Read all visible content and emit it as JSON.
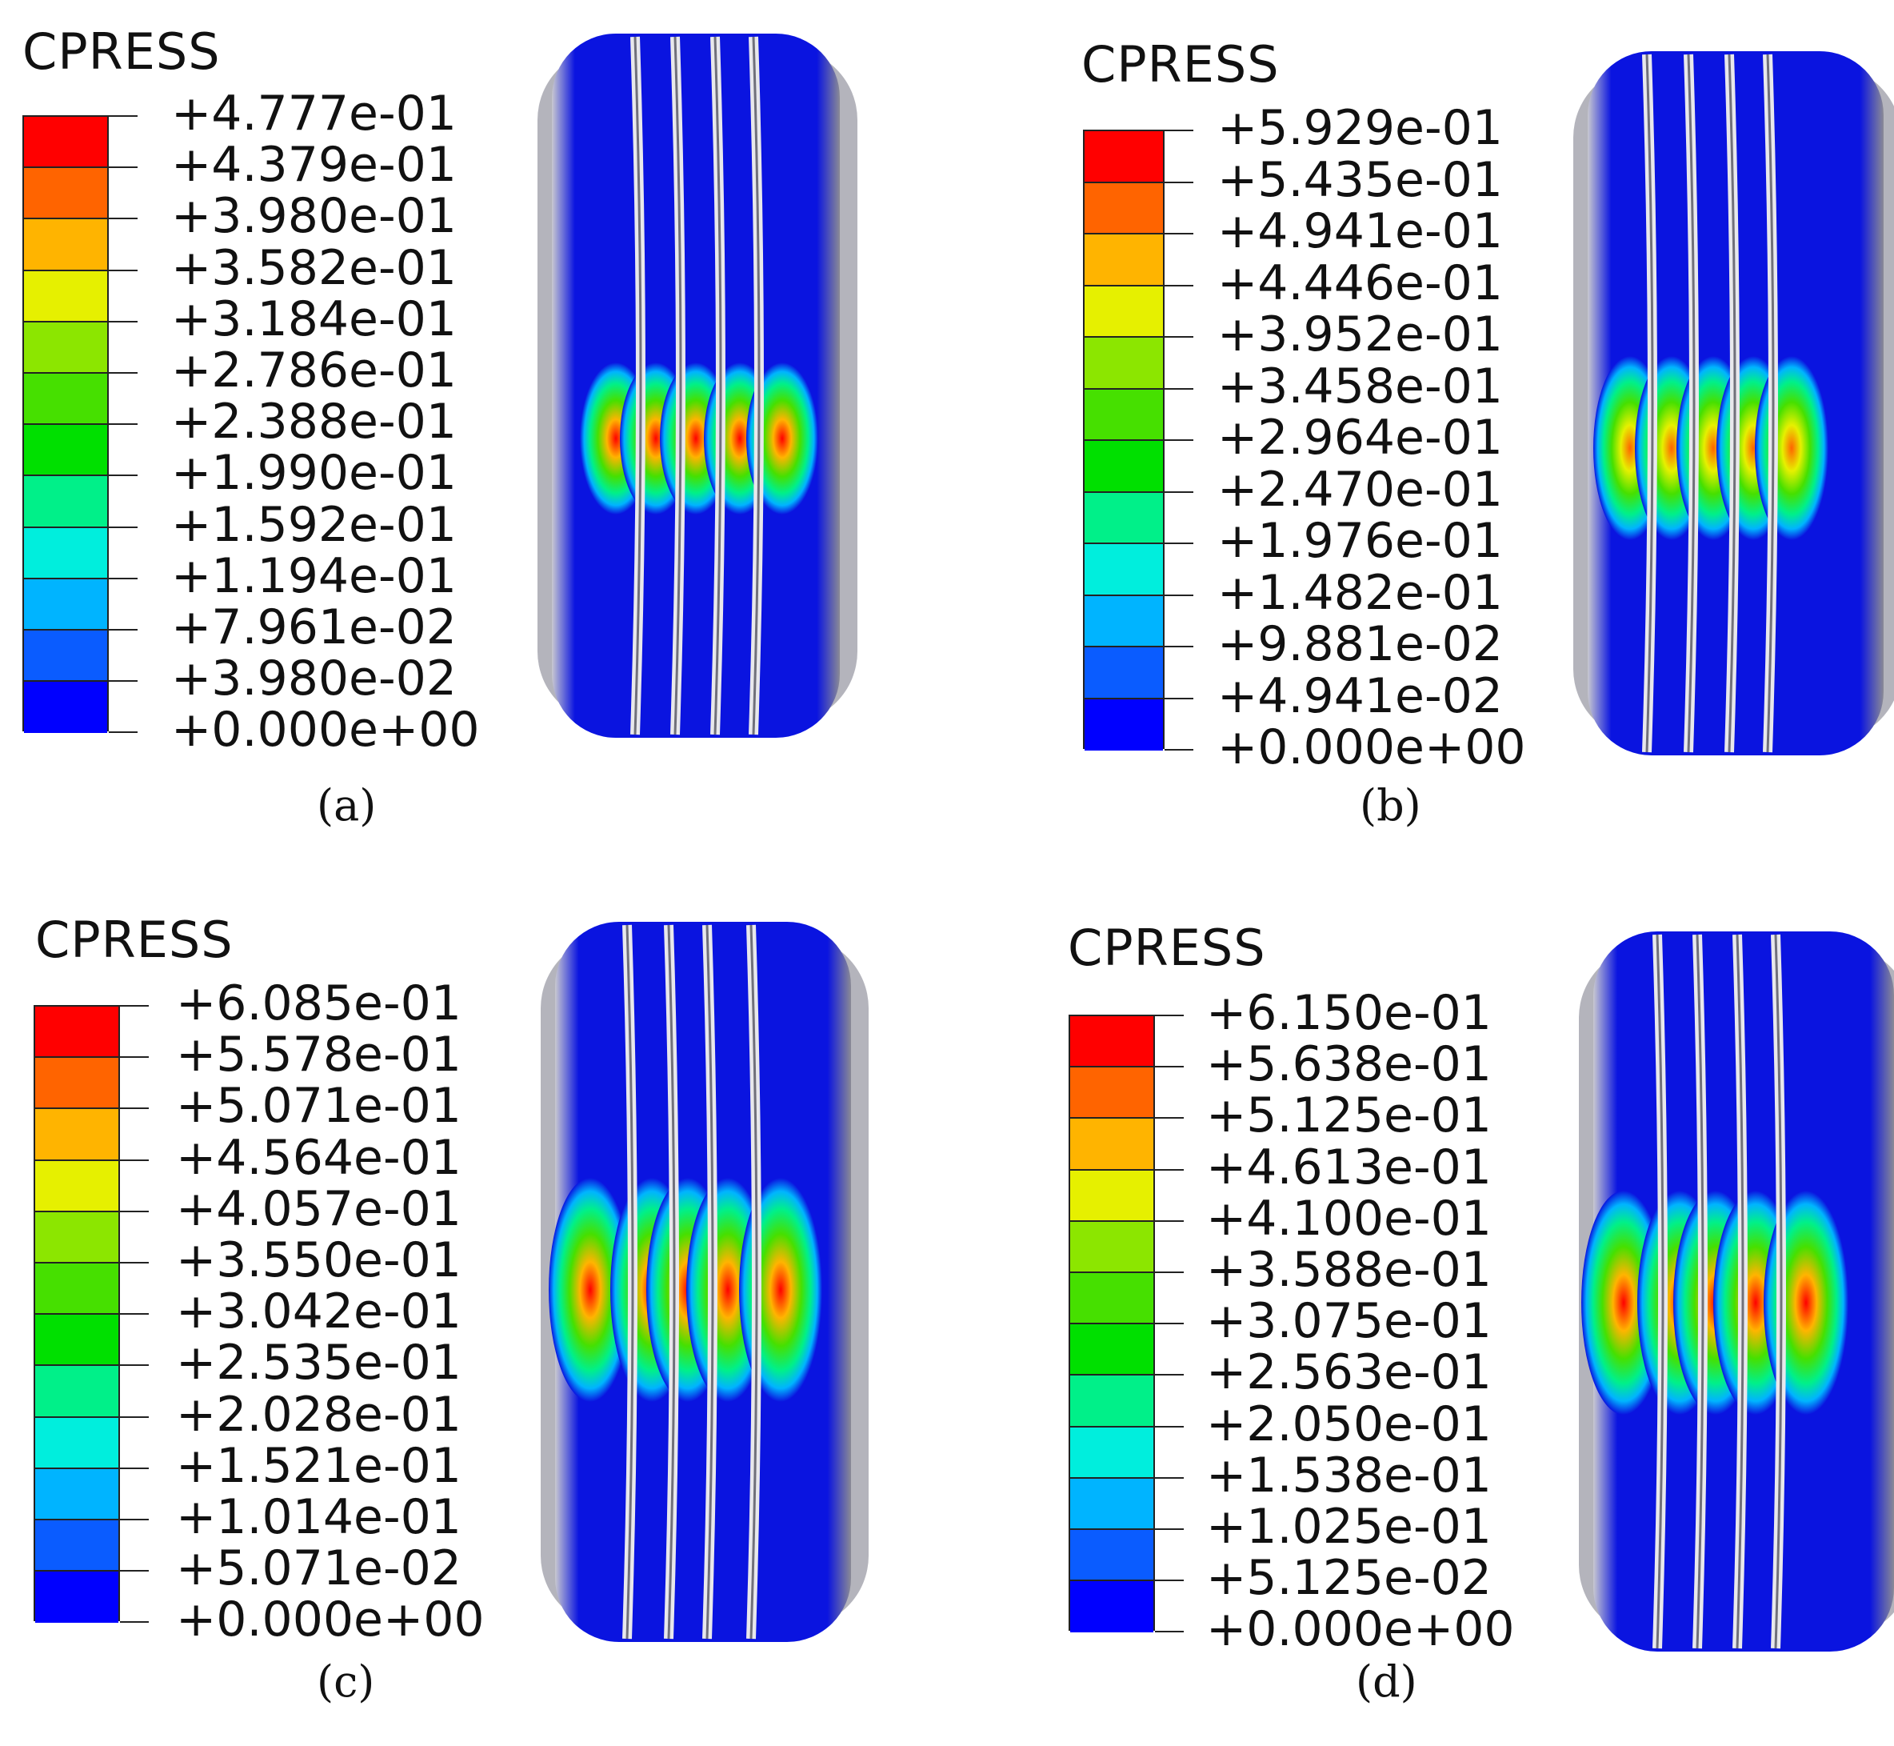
{
  "colors": {
    "levels": [
      "#0000ff",
      "#0a5cff",
      "#00b4ff",
      "#00eedd",
      "#00f089",
      "#00e000",
      "#46e000",
      "#8ce600",
      "#e6f000",
      "#ffb400",
      "#ff6400",
      "#ff0000"
    ],
    "tire_body": "#0a14e0",
    "groove": "#e8e8ec"
  },
  "panels": [
    {
      "caption": "(a)",
      "legend": {
        "title": "CPRESS",
        "labels": [
          "+4.777e-01",
          "+4.379e-01",
          "+3.980e-01",
          "+3.582e-01",
          "+3.184e-01",
          "+2.786e-01",
          "+2.388e-01",
          "+1.990e-01",
          "+1.592e-01",
          "+1.194e-01",
          "+7.961e-02",
          "+3.980e-02",
          "+0.000e+00"
        ]
      },
      "contact_peak_level": 12
    },
    {
      "caption": "(b)",
      "legend": {
        "title": "CPRESS",
        "labels": [
          "+5.929e-01",
          "+5.435e-01",
          "+4.941e-01",
          "+4.446e-01",
          "+3.952e-01",
          "+3.458e-01",
          "+2.964e-01",
          "+2.470e-01",
          "+1.976e-01",
          "+1.482e-01",
          "+9.881e-02",
          "+4.941e-02",
          "+0.000e+00"
        ]
      },
      "contact_peak_level": 11
    },
    {
      "caption": "(c)",
      "legend": {
        "title": "CPRESS",
        "labels": [
          "+6.085e-01",
          "+5.578e-01",
          "+5.071e-01",
          "+4.564e-01",
          "+4.057e-01",
          "+3.550e-01",
          "+3.042e-01",
          "+2.535e-01",
          "+2.028e-01",
          "+1.521e-01",
          "+1.014e-01",
          "+5.071e-02",
          "+0.000e+00"
        ]
      },
      "contact_peak_level": 12
    },
    {
      "caption": "(d)",
      "legend": {
        "title": "CPRESS",
        "labels": [
          "+6.150e-01",
          "+5.638e-01",
          "+5.125e-01",
          "+4.613e-01",
          "+4.100e-01",
          "+3.588e-01",
          "+3.075e-01",
          "+2.563e-01",
          "+2.050e-01",
          "+1.538e-01",
          "+1.025e-01",
          "+5.125e-02",
          "+0.000e+00"
        ]
      },
      "contact_peak_level": 12
    }
  ]
}
